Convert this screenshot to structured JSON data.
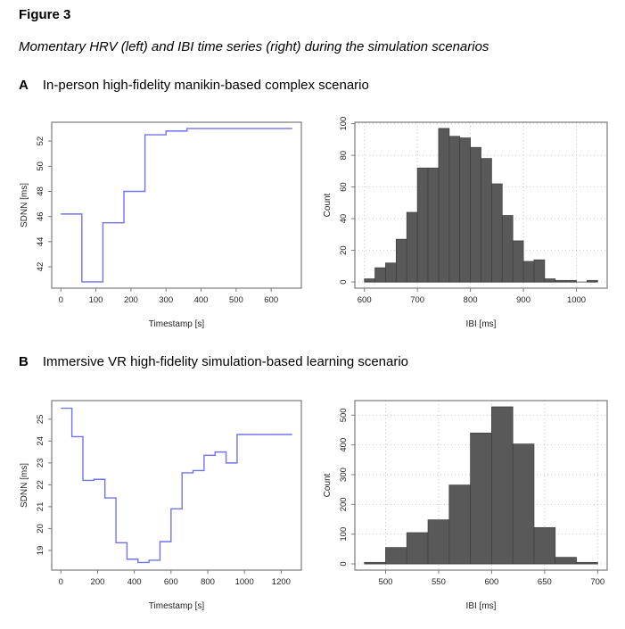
{
  "figure": {
    "label": "Figure 3",
    "caption": "Momentary HRV (left) and IBI time series (right) during the simulation scenarios"
  },
  "panels": [
    {
      "label": "A",
      "title": "In-person high-fidelity manikin-based complex scenario"
    },
    {
      "label": "B",
      "title": "Immersive VR high-fidelity simulation-based learning scenario"
    }
  ],
  "colors": {
    "line": "#7272ef",
    "bar_fill": "#595959",
    "bar_border": "#3f3f3f",
    "grid": "#c6c6c6",
    "box": "#7a7a7a",
    "tick_text": "#1f1f1f",
    "baseline": "#6b6b6b"
  },
  "chart_data": [
    {
      "target": "chart-a-line",
      "type": "line",
      "panel": "A",
      "position": "left",
      "line_style": "step-after",
      "xlabel": "Timestamp [s]",
      "ylabel": "SDNN [ms]",
      "x": [
        0,
        60,
        120,
        180,
        240,
        300,
        360
      ],
      "y": [
        46.2,
        40.8,
        45.5,
        48.0,
        52.5,
        52.8,
        53.0
      ],
      "x_end": 660,
      "xlim": [
        -26,
        686
      ],
      "ylim": [
        40.3,
        53.5
      ],
      "xticks": [
        0,
        100,
        200,
        300,
        400,
        500,
        600
      ],
      "yticks": [
        42,
        44,
        46,
        48,
        50,
        52
      ],
      "grid": false
    },
    {
      "target": "chart-a-hist",
      "type": "bar",
      "panel": "A",
      "position": "right",
      "xlabel": "IBI [ms]",
      "ylabel": "Count",
      "bin_start": 600,
      "bin_width": 20,
      "counts": [
        2,
        9,
        12,
        27,
        44,
        72,
        72,
        97,
        92,
        91,
        85,
        78,
        62,
        42,
        26,
        13,
        14,
        2,
        1,
        1,
        0,
        1
      ],
      "xlim": [
        582,
        1058
      ],
      "ylim": [
        -3.9,
        100.9
      ],
      "xticks": [
        600,
        700,
        800,
        900,
        1000
      ],
      "yticks": [
        0,
        20,
        40,
        60,
        80,
        100
      ],
      "grid": true
    },
    {
      "target": "chart-b-line",
      "type": "line",
      "panel": "B",
      "position": "left",
      "line_style": "step-after",
      "xlabel": "Timestamp [s]",
      "ylabel": "SDNN [ms]",
      "x": [
        0,
        60,
        120,
        180,
        240,
        300,
        360,
        420,
        480,
        540,
        600,
        660,
        720,
        780,
        840,
        900,
        960
      ],
      "y": [
        25.5,
        24.2,
        22.2,
        22.25,
        21.4,
        19.35,
        18.6,
        18.45,
        18.55,
        19.4,
        20.9,
        22.55,
        22.65,
        23.35,
        23.5,
        23.0,
        24.3
      ],
      "x_end": 1260,
      "xlim": [
        -50,
        1310
      ],
      "ylim": [
        18.1,
        25.85
      ],
      "xticks": [
        0,
        200,
        400,
        600,
        800,
        1000,
        1200
      ],
      "yticks": [
        19,
        20,
        21,
        22,
        23,
        24,
        25
      ],
      "grid": false
    },
    {
      "target": "chart-b-hist",
      "type": "bar",
      "panel": "B",
      "position": "right",
      "xlabel": "IBI [ms]",
      "ylabel": "Count",
      "bin_start": 480,
      "bin_width": 20,
      "counts": [
        5,
        55,
        105,
        148,
        265,
        440,
        528,
        403,
        122,
        22,
        5
      ],
      "xlim": [
        471,
        709
      ],
      "ylim": [
        -21,
        549
      ],
      "xticks": [
        500,
        550,
        600,
        650,
        700
      ],
      "yticks": [
        0,
        100,
        200,
        300,
        400,
        500
      ],
      "grid": true
    }
  ]
}
